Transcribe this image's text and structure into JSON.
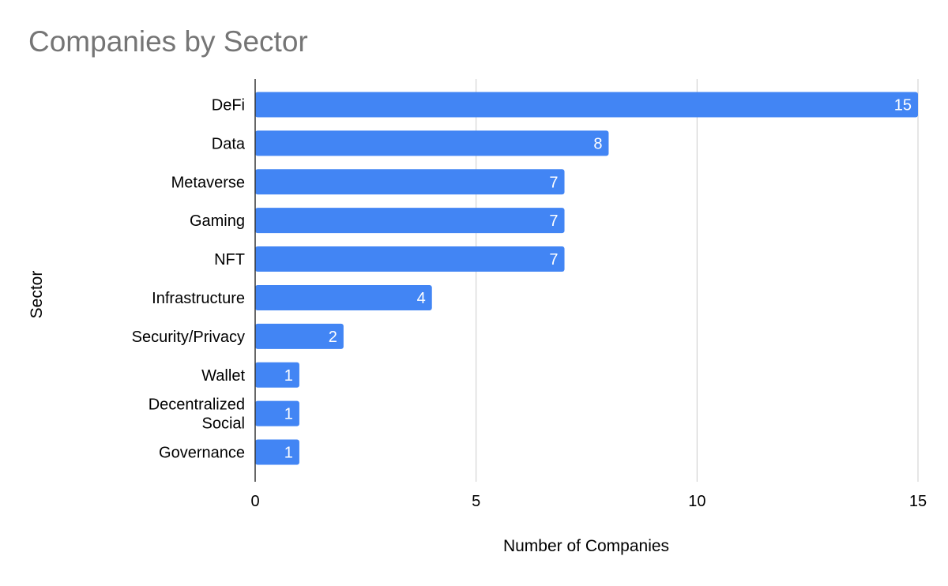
{
  "chart_data": {
    "type": "bar",
    "orientation": "horizontal",
    "title": "Companies by Sector",
    "xlabel": "Number of Companies",
    "ylabel": "Sector",
    "categories": [
      "DeFi",
      "Data",
      "Metaverse",
      "Gaming",
      "NFT",
      "Infrastructure",
      "Security/Privacy",
      "Wallet",
      "Decentralized Social",
      "Governance"
    ],
    "values": [
      15,
      8,
      7,
      7,
      7,
      4,
      2,
      1,
      1,
      1
    ],
    "xlim": [
      0,
      15
    ],
    "xticks": [
      0,
      5,
      10,
      15
    ],
    "grid": true,
    "bar_color": "#4285f4",
    "data_labels": true
  }
}
